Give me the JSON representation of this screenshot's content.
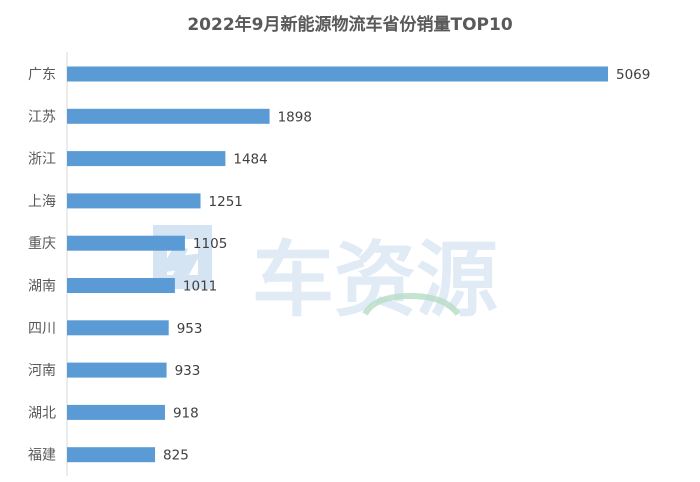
{
  "chart_data": {
    "type": "bar",
    "orientation": "horizontal",
    "title": "2022年9月新能源物流车省份销量TOP10",
    "categories": [
      "广东",
      "江苏",
      "浙江",
      "上海",
      "重庆",
      "湖南",
      "四川",
      "河南",
      "湖北",
      "福建"
    ],
    "values": [
      5069,
      1898,
      1484,
      1251,
      1105,
      1011,
      953,
      933,
      918,
      825
    ],
    "xlim": [
      0,
      5069
    ],
    "grid": false,
    "legend": "none",
    "bar_color": "#5b9bd5"
  },
  "watermark": {
    "text": "车资源",
    "icon": "electric-plug-logo-icon"
  }
}
